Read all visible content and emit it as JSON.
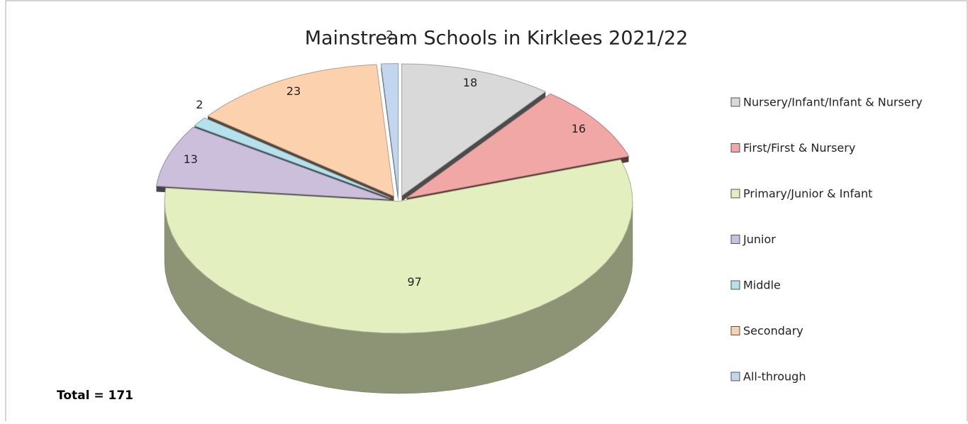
{
  "chart_data": {
    "type": "pie",
    "title": "Mainstream Schools in Kirklees 2021/22",
    "categories": [
      "Nursery/Infant/Infant & Nursery",
      "First/First & Nursery",
      "Primary/Junior & Infant",
      "Junior",
      "Middle",
      "Secondary",
      "All-through"
    ],
    "values": [
      18,
      16,
      97,
      13,
      2,
      23,
      2
    ],
    "colors": [
      "#d9d9d9",
      "#f2a7a7",
      "#e3efbf",
      "#cbbfdc",
      "#b4e1ec",
      "#fbd1ae",
      "#c3d6f0"
    ],
    "annotation": "Total = 171",
    "legend": "right"
  }
}
